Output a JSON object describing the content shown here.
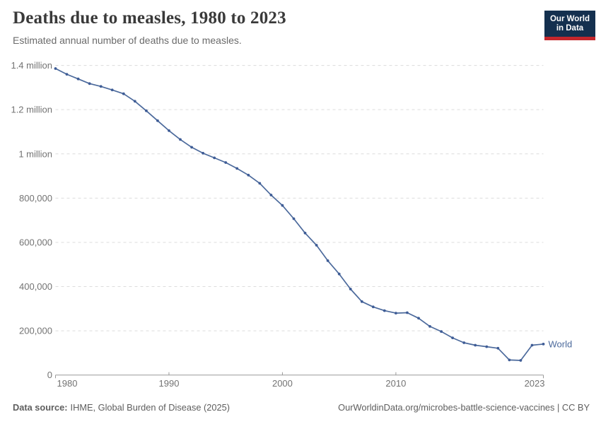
{
  "header": {
    "title": "Deaths due to measles, 1980 to 2023",
    "subtitle": "Estimated annual number of deaths due to measles.",
    "logo": {
      "line1": "Our World",
      "line2": "in Data"
    }
  },
  "chart_data": {
    "type": "line",
    "title": "Deaths due to measles, 1980 to 2023",
    "subtitle": "Estimated annual number of deaths due to measles.",
    "xlabel": "",
    "ylabel": "",
    "xlim": [
      1980,
      2023
    ],
    "ylim": [
      0,
      1400000
    ],
    "grid": "horizontal-dashed",
    "legend_position": "end-of-line-label",
    "x": [
      1980,
      1981,
      1982,
      1983,
      1984,
      1985,
      1986,
      1987,
      1988,
      1989,
      1990,
      1991,
      1992,
      1993,
      1994,
      1995,
      1996,
      1997,
      1998,
      1999,
      2000,
      2001,
      2002,
      2003,
      2004,
      2005,
      2006,
      2007,
      2008,
      2009,
      2010,
      2011,
      2012,
      2013,
      2014,
      2015,
      2016,
      2017,
      2018,
      2019,
      2020,
      2021,
      2022,
      2023
    ],
    "series": [
      {
        "name": "World",
        "values": [
          1386000,
          1360000,
          1339000,
          1318000,
          1305000,
          1289000,
          1272000,
          1238000,
          1195000,
          1150000,
          1105000,
          1065000,
          1030000,
          1003000,
          982000,
          961000,
          934000,
          904000,
          867000,
          814000,
          767000,
          707000,
          642000,
          587000,
          517000,
          457000,
          389000,
          332000,
          308000,
          291000,
          280000,
          282000,
          257000,
          220000,
          197000,
          168000,
          146000,
          135000,
          128000,
          121000,
          68000,
          66000,
          135000,
          140000
        ]
      }
    ],
    "y_ticks": [
      {
        "value": 0,
        "label": "0"
      },
      {
        "value": 200000,
        "label": "200,000"
      },
      {
        "value": 400000,
        "label": "400,000"
      },
      {
        "value": 600000,
        "label": "600,000"
      },
      {
        "value": 800000,
        "label": "800,000"
      },
      {
        "value": 1000000,
        "label": "1 million"
      },
      {
        "value": 1200000,
        "label": "1.2 million"
      },
      {
        "value": 1400000,
        "label": "1.4 million"
      }
    ],
    "x_ticks": [
      {
        "value": 1980,
        "label": "1980"
      },
      {
        "value": 1990,
        "label": "1990"
      },
      {
        "value": 2000,
        "label": "2000"
      },
      {
        "value": 2010,
        "label": "2010"
      },
      {
        "value": 2023,
        "label": "2023"
      }
    ]
  },
  "colors": {
    "line": "#4c6a9c",
    "marker": "#3e5c96",
    "series_label": "#4c6a9c",
    "grid": "#dcdcdc",
    "axis": "#999999",
    "tick_text": "#737373",
    "logo_bg": "#14304f",
    "logo_accent": "#c4262c",
    "title_text": "#3a3a3a",
    "subtitle_text": "#6b6b6b",
    "footer_text": "#5e5e5e"
  },
  "footer": {
    "datasource_label": "Data source:",
    "datasource_value": "IHME, Global Burden of Disease (2025)",
    "credit": "OurWorldinData.org/microbes-battle-science-vaccines | CC BY"
  }
}
